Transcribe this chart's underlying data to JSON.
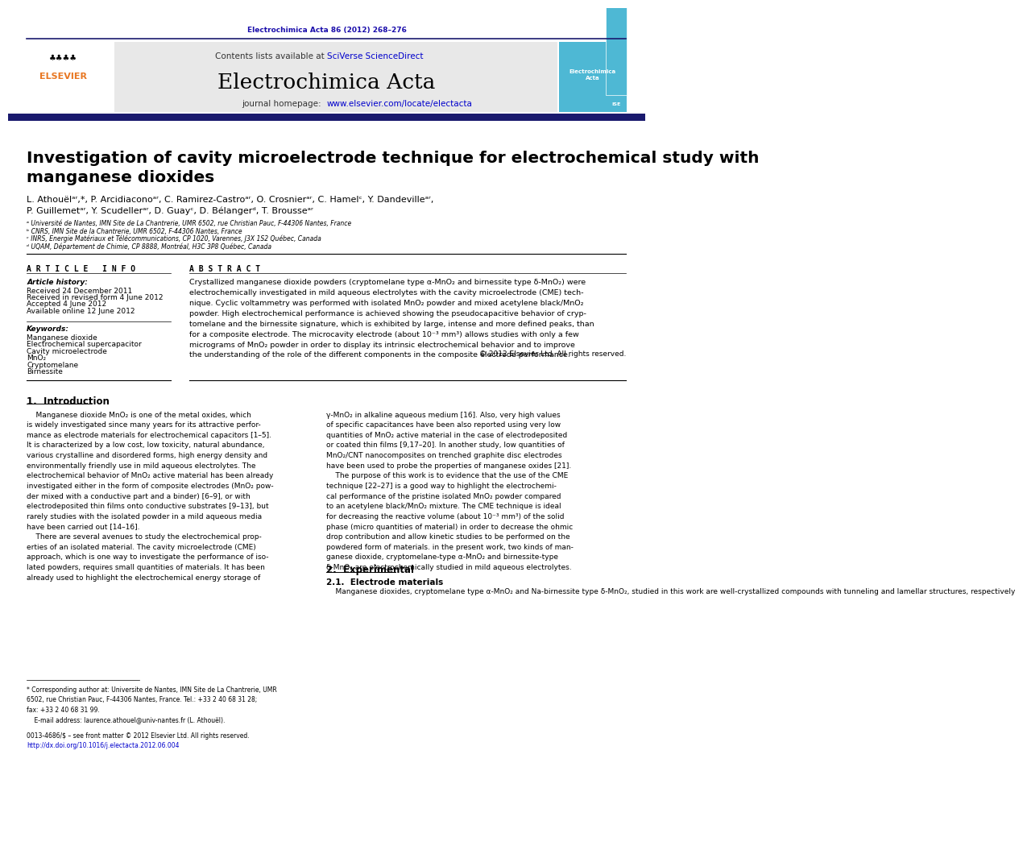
{
  "page_width": 10.21,
  "page_height": 13.51,
  "bg_color": "#ffffff",
  "top_citation": "Electrochimica Acta 86 (2012) 268–276",
  "journal_name": "Electrochimica Acta",
  "contents_text": "Contents lists available at ",
  "sciverse_text": "SciVerse ScienceDirect",
  "journal_url": "www.elsevier.com/locate/electacta",
  "header_bg": "#e8e8e8",
  "article_title": "Investigation of cavity microelectrode technique for electrochemical study with\nmanganese dioxides",
  "affil_a": "ᵃ Université de Nantes, IMN Site de La Chantrerie, UMR 6502, rue Christian Pauc, F-44306 Nantes, France",
  "affil_b": "ᵇ CNRS, IMN Site de la Chantrerie, UMR 6502, F-44306 Nantes, France",
  "affil_c": "ᶜ INRS, Energie Matériaux et Télécommunications, CP 1020, Varennes, J3X 1S2 Québec, Canada",
  "affil_d": "ᵈ UQAM, Département de Chimie, CP 8888, Montréal, H3C 3P8 Québec, Canada",
  "article_info_title": "A R T I C L E   I N F O",
  "abstract_title": "A B S T R A C T",
  "article_history_label": "Article history:",
  "received": "Received 24 December 2011",
  "revised": "Received in revised form 4 June 2012",
  "accepted": "Accepted 4 June 2012",
  "online": "Available online 12 June 2012",
  "keywords_label": "Keywords:",
  "keywords": [
    "Manganese dioxide",
    "Electrochemical supercapacitor",
    "Cavity microelectrode",
    "MnO₂",
    "Cryptomelane",
    "Birnessite"
  ],
  "copyright": "© 2012 Elsevier Ltd. All rights reserved.",
  "section1_title": "1.  Introduction",
  "section2_title": "2.  Experimental",
  "section21_title": "2.1.  Electrode materials",
  "section21_text": "    Manganese dioxides, cryptomelane type α-MnO₂ and Na-birnessite type δ-MnO₂, studied in this work are well-crystallized compounds with tunneling and lamellar structures, respectively",
  "footnote_star": "* Corresponding author at: Universite de Nantes, IMN Site de La Chantrerie, UMR\n6502, rue Christian Pauc, F-44306 Nantes, France. Tel.: +33 2 40 68 31 28;\nfax: +33 2 40 68 31 99.\n    E-mail address: laurence.athouel@univ-nantes.fr (L. Athouël).",
  "footnote_issn": "0013-4686/$ – see front matter © 2012 Elsevier Ltd. All rights reserved.",
  "footnote_doi": "http://dx.doi.org/10.1016/j.electacta.2012.06.004",
  "link_color": "#0000cc",
  "blue_dark": "#1a0dab",
  "elsevier_orange": "#e87722",
  "dark_bar_color": "#1a1a6e"
}
